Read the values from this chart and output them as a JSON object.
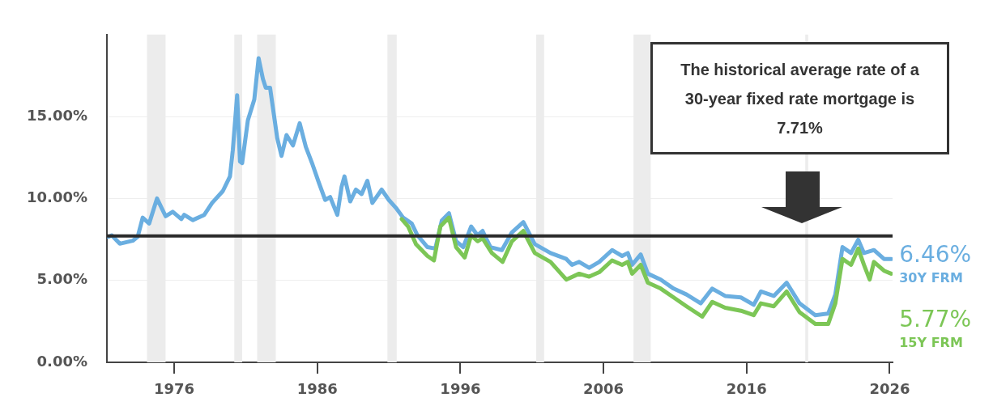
{
  "chart_data": {
    "type": "line",
    "xlim": [
      1971.3,
      2026.2
    ],
    "ylim": [
      0,
      20
    ],
    "xticks": [
      1976,
      1986,
      1996,
      2006,
      2016,
      2026
    ],
    "yticks": [
      {
        "value": 0,
        "label": "0.00%"
      },
      {
        "value": 5,
        "label": "5.00%"
      },
      {
        "value": 10,
        "label": "10.00%"
      },
      {
        "value": 15,
        "label": "15.00%"
      }
    ],
    "grid": "y",
    "legend": false,
    "line_style": "solid",
    "marker": "none",
    "series": [
      {
        "name": "30Y FRM",
        "color": "#6aaee0",
        "x": [
          1971.42,
          1971.64,
          1972.2,
          1973.1,
          1973.45,
          1973.8,
          1974.25,
          1974.8,
          1975.4,
          1975.9,
          1976.5,
          1976.7,
          1977.3,
          1978.1,
          1978.65,
          1979.4,
          1979.9,
          1980.1,
          1980.4,
          1980.6,
          1980.75,
          1981.15,
          1981.6,
          1981.9,
          1982.2,
          1982.4,
          1982.7,
          1983.2,
          1983.5,
          1983.85,
          1984.3,
          1984.77,
          1985.2,
          1985.67,
          1986.1,
          1986.55,
          1986.9,
          1987.4,
          1987.7,
          1987.9,
          1988.3,
          1988.7,
          1989.1,
          1989.5,
          1989.85,
          1990.5,
          1991.0,
          1991.55,
          1992.0,
          1992.6,
          1993.0,
          1993.7,
          1994.25,
          1994.7,
          1995.2,
          1995.7,
          1996.2,
          1996.75,
          1997.2,
          1997.55,
          1998.1,
          1998.9,
          1999.6,
          2000.4,
          2001.2,
          2002.3,
          2003.4,
          2003.8,
          2004.3,
          2005.0,
          2005.7,
          2006.6,
          2007.3,
          2007.7,
          2008.0,
          2008.6,
          2009.1,
          2010.0,
          2010.9,
          2011.8,
          2012.8,
          2013.6,
          2014.5,
          2015.6,
          2016.5,
          2017.0,
          2017.9,
          2018.8,
          2019.7,
          2020.8,
          2021.7,
          2022.2,
          2022.7,
          2023.3,
          2023.8,
          2024.2,
          2024.9,
          2025.6,
          2026.1
        ],
        "values": [
          7.66,
          7.75,
          7.24,
          7.42,
          7.66,
          8.83,
          8.47,
          10.0,
          8.92,
          9.19,
          8.74,
          9.0,
          8.68,
          9.0,
          9.73,
          10.45,
          11.35,
          12.97,
          16.3,
          12.25,
          12.16,
          14.77,
          16.04,
          18.56,
          17.3,
          16.76,
          16.76,
          13.69,
          12.6,
          13.87,
          13.24,
          14.59,
          13.15,
          12.07,
          10.99,
          9.91,
          10.09,
          9.0,
          10.72,
          11.35,
          9.82,
          10.54,
          10.27,
          11.08,
          9.73,
          10.54,
          9.91,
          9.37,
          8.83,
          8.47,
          7.75,
          7.03,
          6.94,
          8.65,
          9.1,
          7.39,
          7.03,
          8.29,
          7.75,
          8.02,
          7.03,
          6.85,
          7.93,
          8.56,
          7.21,
          6.67,
          6.31,
          5.95,
          6.13,
          5.77,
          6.13,
          6.85,
          6.49,
          6.67,
          5.95,
          6.58,
          5.41,
          5.05,
          4.5,
          4.14,
          3.6,
          4.5,
          4.05,
          3.96,
          3.51,
          4.32,
          4.05,
          4.86,
          3.6,
          2.88,
          2.97,
          4.14,
          7.03,
          6.67,
          7.48,
          6.67,
          6.85,
          6.31,
          6.31
        ]
      },
      {
        "name": "15Y FRM",
        "color": "#7cc656",
        "x": [
          1991.9,
          1992.35,
          1992.9,
          1993.7,
          1994.15,
          1994.6,
          1995.2,
          1995.7,
          1996.3,
          1996.75,
          1997.2,
          1997.55,
          1998.2,
          1998.95,
          1999.6,
          2000.4,
          2001.2,
          2002.3,
          2003.4,
          2004.3,
          2005.0,
          2005.7,
          2006.6,
          2007.3,
          2007.7,
          2008.0,
          2008.6,
          2009.1,
          2010.0,
          2010.9,
          2011.8,
          2012.9,
          2013.6,
          2014.5,
          2015.6,
          2016.5,
          2017.0,
          2017.9,
          2018.8,
          2019.7,
          2020.8,
          2021.7,
          2022.2,
          2022.7,
          2023.3,
          2023.8,
          2024.2,
          2024.6,
          2024.9,
          2025.6,
          2026.1
        ],
        "values": [
          8.74,
          8.29,
          7.21,
          6.49,
          6.22,
          8.29,
          8.83,
          7.03,
          6.4,
          7.75,
          7.39,
          7.57,
          6.67,
          6.13,
          7.39,
          8.02,
          6.67,
          6.13,
          5.05,
          5.41,
          5.23,
          5.5,
          6.22,
          5.95,
          6.13,
          5.41,
          5.95,
          4.86,
          4.5,
          3.96,
          3.42,
          2.79,
          3.69,
          3.33,
          3.15,
          2.88,
          3.6,
          3.42,
          4.32,
          3.06,
          2.34,
          2.34,
          3.6,
          6.31,
          5.95,
          6.94,
          5.95,
          5.05,
          6.13,
          5.59,
          5.41
        ]
      }
    ],
    "ref_lines": [
      {
        "axis": "y",
        "value": 7.71,
        "color": "#2b2b2b"
      }
    ],
    "bands": [
      {
        "axis": "x",
        "from": 1974.1,
        "to": 1975.4,
        "color": "#ececec"
      },
      {
        "axis": "x",
        "from": 1980.2,
        "to": 1980.75,
        "color": "#ececec"
      },
      {
        "axis": "x",
        "from": 1981.8,
        "to": 1983.1,
        "color": "#ececec"
      },
      {
        "axis": "x",
        "from": 1990.9,
        "to": 1991.55,
        "color": "#ececec"
      },
      {
        "axis": "x",
        "from": 2001.3,
        "to": 2001.85,
        "color": "#ececec"
      },
      {
        "axis": "x",
        "from": 2008.1,
        "to": 2009.3,
        "color": "#ececec"
      },
      {
        "axis": "x",
        "from": 2020.1,
        "to": 2020.3,
        "color": "#ececec"
      }
    ],
    "annotations": [
      "The historical average rate of a 30-year fixed rate mortgage is 7.71%",
      {
        "text": "6.46%",
        "x": 2026.1,
        "y": 6.46
      },
      {
        "text": "5.77%",
        "x": 2026.1,
        "y": 5.77
      }
    ]
  }
}
